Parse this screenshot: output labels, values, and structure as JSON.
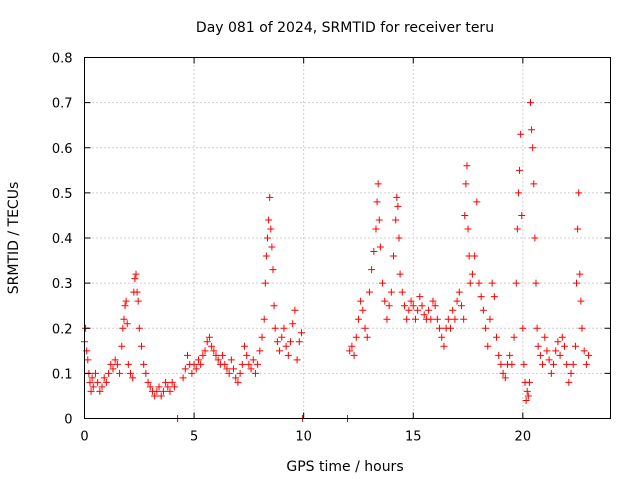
{
  "chart_data": {
    "type": "scatter",
    "title": "Day 081 of 2024, SRMTID for receiver teru",
    "xlabel": "GPS time / hours",
    "ylabel": "SRMTID / TECUs",
    "xlim": [
      0,
      24
    ],
    "ylim": [
      0,
      0.8
    ],
    "x_ticks": [
      0,
      5,
      10,
      15,
      20
    ],
    "x_tick_labels": [
      "0",
      "5",
      "10",
      "15",
      "20"
    ],
    "y_ticks": [
      0,
      0.1,
      0.2,
      0.3,
      0.4,
      0.5,
      0.6,
      0.7,
      0.8
    ],
    "y_tick_labels": [
      "0",
      "0.1",
      "0.2",
      "0.3",
      "0.4",
      "0.5",
      "0.6",
      "0.7",
      "0.8"
    ],
    "grid": true,
    "marker": "+",
    "marker_color": "#ff0000",
    "series": [
      {
        "name": "SRMTID",
        "points": [
          [
            0.0,
            0.17
          ],
          [
            0.05,
            0.2
          ],
          [
            0.1,
            0.15
          ],
          [
            0.15,
            0.13
          ],
          [
            0.2,
            0.1
          ],
          [
            0.25,
            0.08
          ],
          [
            0.3,
            0.06
          ],
          [
            0.35,
            0.09
          ],
          [
            0.4,
            0.07
          ],
          [
            0.5,
            0.1
          ],
          [
            0.6,
            0.08
          ],
          [
            0.7,
            0.06
          ],
          [
            0.8,
            0.07
          ],
          [
            0.9,
            0.09
          ],
          [
            1.0,
            0.08
          ],
          [
            1.1,
            0.1
          ],
          [
            1.2,
            0.12
          ],
          [
            1.3,
            0.11
          ],
          [
            1.4,
            0.13
          ],
          [
            1.5,
            0.12
          ],
          [
            1.6,
            0.1
          ],
          [
            1.7,
            0.16
          ],
          [
            1.75,
            0.2
          ],
          [
            1.8,
            0.22
          ],
          [
            1.85,
            0.25
          ],
          [
            1.9,
            0.26
          ],
          [
            1.95,
            0.21
          ],
          [
            2.0,
            0.12
          ],
          [
            2.1,
            0.1
          ],
          [
            2.2,
            0.09
          ],
          [
            2.25,
            0.28
          ],
          [
            2.3,
            0.31
          ],
          [
            2.35,
            0.32
          ],
          [
            2.4,
            0.28
          ],
          [
            2.45,
            0.26
          ],
          [
            2.5,
            0.2
          ],
          [
            2.6,
            0.16
          ],
          [
            2.7,
            0.12
          ],
          [
            2.8,
            0.1
          ],
          [
            2.9,
            0.08
          ],
          [
            3.0,
            0.07
          ],
          [
            3.1,
            0.06
          ],
          [
            3.2,
            0.05
          ],
          [
            3.3,
            0.06
          ],
          [
            3.4,
            0.07
          ],
          [
            3.5,
            0.05
          ],
          [
            3.6,
            0.06
          ],
          [
            3.7,
            0.08
          ],
          [
            3.8,
            0.07
          ],
          [
            3.9,
            0.06
          ],
          [
            4.0,
            0.08
          ],
          [
            4.1,
            0.07
          ],
          [
            4.25,
            0.0
          ],
          [
            4.5,
            0.09
          ],
          [
            4.6,
            0.11
          ],
          [
            4.7,
            0.14
          ],
          [
            4.8,
            0.12
          ],
          [
            4.9,
            0.1
          ],
          [
            5.0,
            0.12
          ],
          [
            5.1,
            0.11
          ],
          [
            5.2,
            0.13
          ],
          [
            5.3,
            0.12
          ],
          [
            5.4,
            0.14
          ],
          [
            5.5,
            0.15
          ],
          [
            5.6,
            0.17
          ],
          [
            5.7,
            0.18
          ],
          [
            5.8,
            0.16
          ],
          [
            5.9,
            0.15
          ],
          [
            6.0,
            0.14
          ],
          [
            6.1,
            0.13
          ],
          [
            6.2,
            0.12
          ],
          [
            6.3,
            0.14
          ],
          [
            6.4,
            0.12
          ],
          [
            6.5,
            0.11
          ],
          [
            6.6,
            0.1
          ],
          [
            6.7,
            0.13
          ],
          [
            6.8,
            0.11
          ],
          [
            6.9,
            0.09
          ],
          [
            7.0,
            0.08
          ],
          [
            7.1,
            0.1
          ],
          [
            7.2,
            0.12
          ],
          [
            7.3,
            0.16
          ],
          [
            7.4,
            0.14
          ],
          [
            7.5,
            0.12
          ],
          [
            7.6,
            0.11
          ],
          [
            7.7,
            0.13
          ],
          [
            7.8,
            0.1
          ],
          [
            7.9,
            0.12
          ],
          [
            8.0,
            0.15
          ],
          [
            8.1,
            0.18
          ],
          [
            8.2,
            0.22
          ],
          [
            8.25,
            0.3
          ],
          [
            8.3,
            0.36
          ],
          [
            8.35,
            0.4
          ],
          [
            8.4,
            0.44
          ],
          [
            8.45,
            0.49
          ],
          [
            8.5,
            0.42
          ],
          [
            8.55,
            0.38
          ],
          [
            8.6,
            0.33
          ],
          [
            8.65,
            0.25
          ],
          [
            8.7,
            0.2
          ],
          [
            8.8,
            0.17
          ],
          [
            8.9,
            0.15
          ],
          [
            9.0,
            0.18
          ],
          [
            9.1,
            0.2
          ],
          [
            9.2,
            0.16
          ],
          [
            9.3,
            0.14
          ],
          [
            9.4,
            0.17
          ],
          [
            9.5,
            0.21
          ],
          [
            9.6,
            0.24
          ],
          [
            9.7,
            0.13
          ],
          [
            9.8,
            0.17
          ],
          [
            9.9,
            0.19
          ],
          [
            9.95,
            0.0
          ],
          [
            12.0,
            0.0
          ],
          [
            12.1,
            0.15
          ],
          [
            12.2,
            0.16
          ],
          [
            12.3,
            0.14
          ],
          [
            12.4,
            0.18
          ],
          [
            12.5,
            0.22
          ],
          [
            12.6,
            0.26
          ],
          [
            12.7,
            0.24
          ],
          [
            12.8,
            0.2
          ],
          [
            12.9,
            0.18
          ],
          [
            13.0,
            0.28
          ],
          [
            13.1,
            0.33
          ],
          [
            13.2,
            0.37
          ],
          [
            13.3,
            0.42
          ],
          [
            13.35,
            0.48
          ],
          [
            13.4,
            0.52
          ],
          [
            13.45,
            0.44
          ],
          [
            13.5,
            0.38
          ],
          [
            13.6,
            0.3
          ],
          [
            13.7,
            0.26
          ],
          [
            13.8,
            0.22
          ],
          [
            13.9,
            0.25
          ],
          [
            14.0,
            0.28
          ],
          [
            14.1,
            0.36
          ],
          [
            14.2,
            0.44
          ],
          [
            14.25,
            0.49
          ],
          [
            14.3,
            0.47
          ],
          [
            14.35,
            0.4
          ],
          [
            14.4,
            0.32
          ],
          [
            14.5,
            0.28
          ],
          [
            14.6,
            0.25
          ],
          [
            14.7,
            0.22
          ],
          [
            14.8,
            0.24
          ],
          [
            14.9,
            0.26
          ],
          [
            15.0,
            0.25
          ],
          [
            15.1,
            0.22
          ],
          [
            15.2,
            0.24
          ],
          [
            15.3,
            0.27
          ],
          [
            15.4,
            0.25
          ],
          [
            15.5,
            0.23
          ],
          [
            15.6,
            0.22
          ],
          [
            15.7,
            0.24
          ],
          [
            15.8,
            0.22
          ],
          [
            15.9,
            0.26
          ],
          [
            16.0,
            0.25
          ],
          [
            16.1,
            0.22
          ],
          [
            16.2,
            0.2
          ],
          [
            16.3,
            0.18
          ],
          [
            16.4,
            0.16
          ],
          [
            16.5,
            0.2
          ],
          [
            16.6,
            0.22
          ],
          [
            16.7,
            0.2
          ],
          [
            16.8,
            0.24
          ],
          [
            16.9,
            0.22
          ],
          [
            17.0,
            0.26
          ],
          [
            17.1,
            0.28
          ],
          [
            17.2,
            0.25
          ],
          [
            17.3,
            0.22
          ],
          [
            17.35,
            0.45
          ],
          [
            17.4,
            0.52
          ],
          [
            17.45,
            0.56
          ],
          [
            17.5,
            0.42
          ],
          [
            17.55,
            0.36
          ],
          [
            17.6,
            0.3
          ],
          [
            17.7,
            0.32
          ],
          [
            17.8,
            0.36
          ],
          [
            17.9,
            0.48
          ],
          [
            18.0,
            0.3
          ],
          [
            18.1,
            0.27
          ],
          [
            18.2,
            0.24
          ],
          [
            18.3,
            0.2
          ],
          [
            18.4,
            0.16
          ],
          [
            18.5,
            0.22
          ],
          [
            18.6,
            0.3
          ],
          [
            18.7,
            0.27
          ],
          [
            18.8,
            0.18
          ],
          [
            18.9,
            0.14
          ],
          [
            19.0,
            0.12
          ],
          [
            19.1,
            0.1
          ],
          [
            19.2,
            0.09
          ],
          [
            19.3,
            0.12
          ],
          [
            19.4,
            0.14
          ],
          [
            19.5,
            0.12
          ],
          [
            19.6,
            0.18
          ],
          [
            19.7,
            0.3
          ],
          [
            19.75,
            0.42
          ],
          [
            19.8,
            0.5
          ],
          [
            19.85,
            0.55
          ],
          [
            19.9,
            0.63
          ],
          [
            19.95,
            0.45
          ],
          [
            20.0,
            0.2
          ],
          [
            20.05,
            0.12
          ],
          [
            20.1,
            0.08
          ],
          [
            20.15,
            0.04
          ],
          [
            20.2,
            0.06
          ],
          [
            20.25,
            0.05
          ],
          [
            20.3,
            0.08
          ],
          [
            20.35,
            0.7
          ],
          [
            20.4,
            0.64
          ],
          [
            20.45,
            0.6
          ],
          [
            20.5,
            0.52
          ],
          [
            20.55,
            0.4
          ],
          [
            20.6,
            0.3
          ],
          [
            20.65,
            0.2
          ],
          [
            20.7,
            0.16
          ],
          [
            20.8,
            0.14
          ],
          [
            20.9,
            0.12
          ],
          [
            21.0,
            0.18
          ],
          [
            21.1,
            0.15
          ],
          [
            21.2,
            0.13
          ],
          [
            21.3,
            0.1
          ],
          [
            21.4,
            0.12
          ],
          [
            21.5,
            0.15
          ],
          [
            21.6,
            0.17
          ],
          [
            21.7,
            0.14
          ],
          [
            21.8,
            0.18
          ],
          [
            21.9,
            0.16
          ],
          [
            22.0,
            0.12
          ],
          [
            22.1,
            0.08
          ],
          [
            22.2,
            0.1
          ],
          [
            22.3,
            0.12
          ],
          [
            22.4,
            0.16
          ],
          [
            22.45,
            0.3
          ],
          [
            22.5,
            0.42
          ],
          [
            22.55,
            0.5
          ],
          [
            22.6,
            0.32
          ],
          [
            22.65,
            0.26
          ],
          [
            22.7,
            0.2
          ],
          [
            22.8,
            0.15
          ],
          [
            22.9,
            0.12
          ],
          [
            23.0,
            0.14
          ]
        ]
      }
    ]
  }
}
